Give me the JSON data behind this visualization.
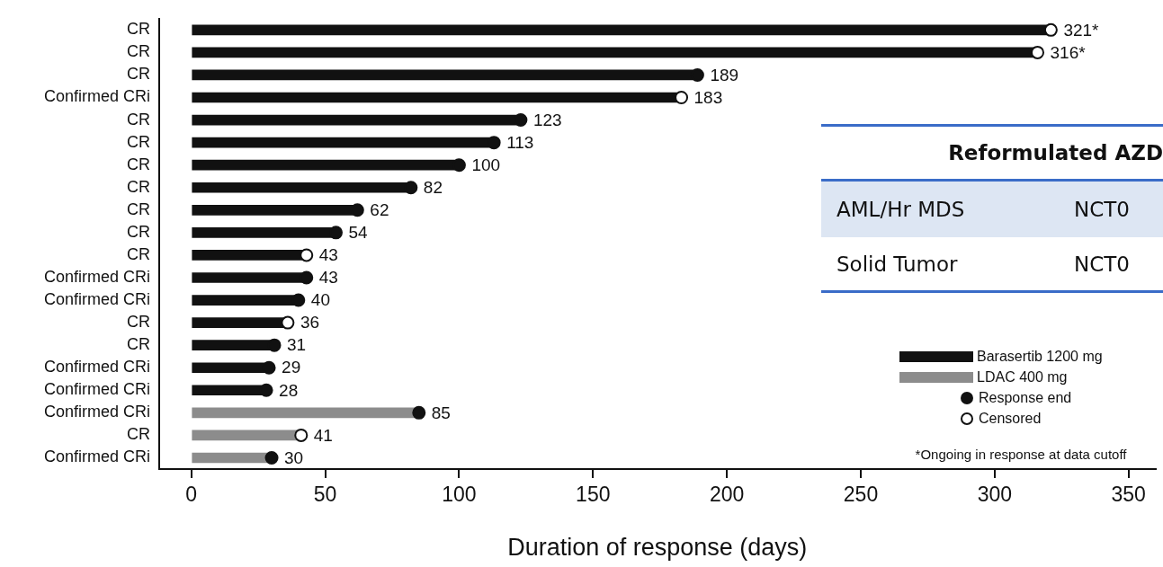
{
  "chart_data": {
    "type": "bar",
    "orientation": "horizontal",
    "xlabel": "Duration of response (days)",
    "categories": [
      "CR",
      "CR",
      "CR",
      "Confirmed CRi",
      "CR",
      "CR",
      "CR",
      "CR",
      "CR",
      "CR",
      "CR",
      "Confirmed CRi",
      "Confirmed CRi",
      "CR",
      "CR",
      "Confirmed CRi",
      "Confirmed CRi",
      "Confirmed CRi",
      "CR",
      "Confirmed CRi"
    ],
    "series": [
      {
        "name": "Barasertib 1200 mg",
        "color": "#111111",
        "values": [
          321,
          316,
          189,
          183,
          123,
          113,
          100,
          82,
          62,
          54,
          43,
          43,
          40,
          36,
          31,
          29,
          28,
          null,
          null,
          null
        ],
        "value_labels": [
          "321*",
          "316*",
          "189",
          "183",
          "123",
          "113",
          "100",
          "82",
          "62",
          "54",
          "43",
          "43",
          "40",
          "36",
          "31",
          "29",
          "28",
          null,
          null,
          null
        ]
      },
      {
        "name": "LDAC 400 mg",
        "color": "#8c8c8c",
        "values": [
          null,
          null,
          null,
          null,
          null,
          null,
          null,
          null,
          null,
          null,
          null,
          null,
          null,
          null,
          null,
          null,
          null,
          85,
          41,
          30
        ],
        "value_labels": [
          null,
          null,
          null,
          null,
          null,
          null,
          null,
          null,
          null,
          null,
          null,
          null,
          null,
          null,
          null,
          null,
          null,
          "85",
          "41",
          "30"
        ]
      },
      {
        "name": "Response end",
        "type": "scatter",
        "color": "#111111",
        "values": [
          null,
          null,
          189,
          null,
          123,
          113,
          100,
          82,
          62,
          54,
          null,
          43,
          40,
          null,
          31,
          29,
          28,
          85,
          null,
          30
        ]
      },
      {
        "name": "Censored",
        "type": "scatter",
        "color": "#ffffff",
        "values": [
          321,
          316,
          null,
          183,
          null,
          null,
          null,
          null,
          null,
          null,
          43,
          null,
          null,
          36,
          null,
          null,
          null,
          null,
          41,
          null
        ]
      }
    ],
    "xlim": [
      -12,
      360
    ],
    "xticks": [
      0,
      50,
      100,
      150,
      200,
      250,
      300,
      350
    ],
    "marker": "circle",
    "legend": "bottom right",
    "annotations": [
      "Reformulated AZD",
      "AML/Hr MDS",
      "NCT0",
      "Solid Tumor",
      "NCT0",
      "*Ongoing in response at data cutoff"
    ]
  }
}
